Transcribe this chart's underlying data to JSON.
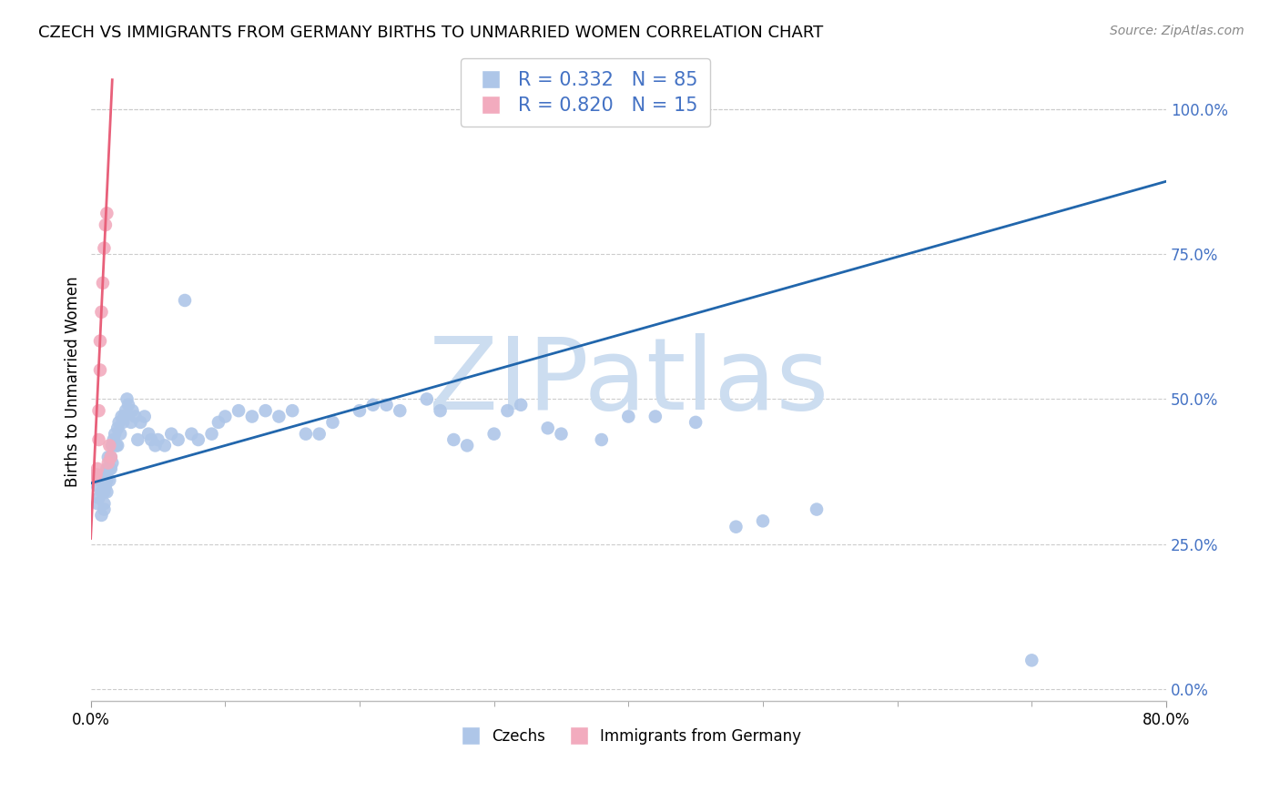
{
  "title": "CZECH VS IMMIGRANTS FROM GERMANY BIRTHS TO UNMARRIED WOMEN CORRELATION CHART",
  "source": "Source: ZipAtlas.com",
  "ylabel": "Births to Unmarried Women",
  "xlim": [
    0.0,
    0.8
  ],
  "ylim": [
    -0.02,
    1.08
  ],
  "yticks": [
    0.0,
    0.25,
    0.5,
    0.75,
    1.0
  ],
  "xtick_positions": [
    0.0,
    0.8
  ],
  "xtick_labels": [
    "0.0%",
    "80.0%"
  ],
  "blue_R": 0.332,
  "blue_N": 85,
  "pink_R": 0.82,
  "pink_N": 15,
  "blue_color": "#aec6e8",
  "pink_color": "#f2abbe",
  "blue_line_color": "#2166ac",
  "pink_line_color": "#e8607a",
  "watermark": "ZIPatlas",
  "watermark_color": "#ccddf0",
  "legend_label_blue": "Czechs",
  "legend_label_pink": "Immigrants from Germany",
  "blue_points_x": [
    0.005,
    0.005,
    0.006,
    0.007,
    0.008,
    0.008,
    0.009,
    0.01,
    0.01,
    0.01,
    0.01,
    0.011,
    0.011,
    0.012,
    0.012,
    0.012,
    0.013,
    0.013,
    0.014,
    0.014,
    0.015,
    0.015,
    0.016,
    0.016,
    0.017,
    0.018,
    0.019,
    0.02,
    0.02,
    0.021,
    0.022,
    0.023,
    0.024,
    0.025,
    0.026,
    0.027,
    0.028,
    0.03,
    0.031,
    0.033,
    0.035,
    0.037,
    0.04,
    0.043,
    0.045,
    0.048,
    0.05,
    0.055,
    0.06,
    0.065,
    0.07,
    0.075,
    0.08,
    0.09,
    0.095,
    0.1,
    0.11,
    0.12,
    0.13,
    0.14,
    0.15,
    0.16,
    0.17,
    0.18,
    0.2,
    0.21,
    0.22,
    0.23,
    0.25,
    0.26,
    0.27,
    0.28,
    0.3,
    0.31,
    0.32,
    0.34,
    0.35,
    0.38,
    0.4,
    0.42,
    0.45,
    0.48,
    0.5,
    0.54,
    0.7
  ],
  "blue_points_y": [
    0.35,
    0.32,
    0.33,
    0.36,
    0.34,
    0.3,
    0.37,
    0.36,
    0.34,
    0.32,
    0.31,
    0.37,
    0.35,
    0.38,
    0.36,
    0.34,
    0.38,
    0.4,
    0.38,
    0.36,
    0.4,
    0.38,
    0.42,
    0.39,
    0.43,
    0.44,
    0.42,
    0.45,
    0.42,
    0.46,
    0.44,
    0.47,
    0.46,
    0.47,
    0.48,
    0.5,
    0.49,
    0.46,
    0.48,
    0.47,
    0.43,
    0.46,
    0.47,
    0.44,
    0.43,
    0.42,
    0.43,
    0.42,
    0.44,
    0.43,
    0.67,
    0.44,
    0.43,
    0.44,
    0.46,
    0.47,
    0.48,
    0.47,
    0.48,
    0.47,
    0.48,
    0.44,
    0.44,
    0.46,
    0.48,
    0.49,
    0.49,
    0.48,
    0.5,
    0.48,
    0.43,
    0.42,
    0.44,
    0.48,
    0.49,
    0.45,
    0.44,
    0.43,
    0.47,
    0.47,
    0.46,
    0.28,
    0.29,
    0.31,
    0.05
  ],
  "pink_points_x": [
    0.003,
    0.004,
    0.005,
    0.006,
    0.006,
    0.007,
    0.007,
    0.008,
    0.009,
    0.01,
    0.011,
    0.012,
    0.013,
    0.014,
    0.015
  ],
  "pink_points_y": [
    0.365,
    0.37,
    0.38,
    0.43,
    0.48,
    0.55,
    0.6,
    0.65,
    0.7,
    0.76,
    0.8,
    0.82,
    0.39,
    0.42,
    0.4
  ],
  "blue_trend_x": [
    0.0,
    0.8
  ],
  "blue_trend_y": [
    0.355,
    0.875
  ],
  "pink_trend_x": [
    0.0,
    0.016
  ],
  "pink_trend_y": [
    0.26,
    1.05
  ]
}
